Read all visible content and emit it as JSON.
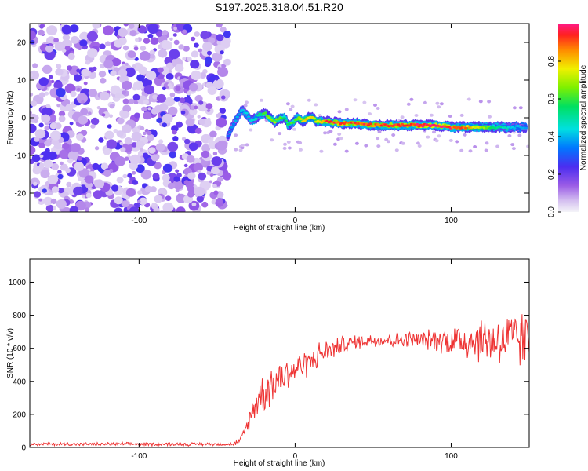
{
  "title": "S197.2025.318.04.51.R20",
  "chart_data": [
    {
      "type": "heatmap",
      "xlabel": "Height of straight line (km)",
      "ylabel": "Frequency (Hz)",
      "xlim": [
        -170,
        150
      ],
      "ylim": [
        -25,
        25
      ],
      "xticks": [
        -100,
        0,
        100
      ],
      "yticks": [
        -20,
        -10,
        0,
        10,
        20
      ],
      "noise_region_x": [
        -170,
        -43
      ],
      "signal_track": {
        "x": [
          -43,
          -40,
          -37,
          -34,
          -31,
          -28,
          -25,
          -22,
          -19,
          -16,
          -13,
          -10,
          -7,
          -4,
          -1,
          2,
          5,
          8,
          11,
          14,
          17,
          20,
          30,
          40,
          50,
          60,
          70,
          80,
          90,
          100,
          110,
          120,
          130,
          140,
          148
        ],
        "freq": [
          -5,
          -2,
          0,
          2,
          1,
          -1,
          0,
          1,
          1,
          0,
          -1,
          0,
          0,
          -2,
          -1,
          0,
          -1,
          0,
          0,
          -1,
          -1,
          -1,
          -1.5,
          -1.5,
          -2,
          -2,
          -2,
          -2,
          -2,
          -2.5,
          -2.5,
          -2.5,
          -2.5,
          -2.5,
          -2.5
        ],
        "amplitude": [
          0.3,
          0.35,
          0.35,
          0.4,
          0.4,
          0.4,
          0.45,
          0.5,
          0.6,
          0.65,
          0.7,
          0.65,
          0.6,
          0.55,
          0.6,
          0.7,
          0.75,
          0.8,
          0.75,
          0.8,
          0.85,
          0.9,
          0.95,
          0.95,
          0.9,
          0.95,
          0.95,
          1.0,
          1.0,
          0.95,
          0.85,
          0.7,
          0.5,
          0.4,
          0.35
        ]
      },
      "colorbar": {
        "label": "Normalized spectral amplitude",
        "range": [
          0,
          1
        ],
        "ticks": [
          0.0,
          0.2,
          0.4,
          0.6,
          0.8
        ]
      }
    },
    {
      "type": "line",
      "xlabel": "Height of straight line (km)",
      "ylabel": "SNR (10 * v/v)",
      "xlim": [
        -170,
        150
      ],
      "ylim": [
        0,
        1140
      ],
      "xticks": [
        -100,
        0,
        100
      ],
      "yticks": [
        0,
        200,
        400,
        600,
        800,
        1000
      ],
      "color": "#ee3333",
      "series": [
        {
          "name": "SNR",
          "envelope_x": [
            -170,
            -40,
            -35,
            -30,
            -25,
            -20,
            -15,
            -10,
            -5,
            0,
            5,
            10,
            15,
            20,
            25,
            30,
            40,
            50,
            60,
            70,
            80,
            90,
            100,
            110,
            120,
            130,
            140,
            150
          ],
          "envelope_mean": [
            20,
            20,
            40,
            150,
            280,
            340,
            380,
            420,
            450,
            470,
            500,
            520,
            560,
            580,
            600,
            620,
            640,
            650,
            650,
            650,
            650,
            650,
            650,
            650,
            650,
            650,
            650,
            650
          ],
          "envelope_amp": [
            12,
            12,
            25,
            60,
            120,
            150,
            140,
            140,
            120,
            100,
            100,
            90,
            90,
            80,
            70,
            60,
            50,
            50,
            50,
            60,
            60,
            80,
            110,
            140,
            160,
            180,
            200,
            220
          ]
        }
      ]
    }
  ]
}
